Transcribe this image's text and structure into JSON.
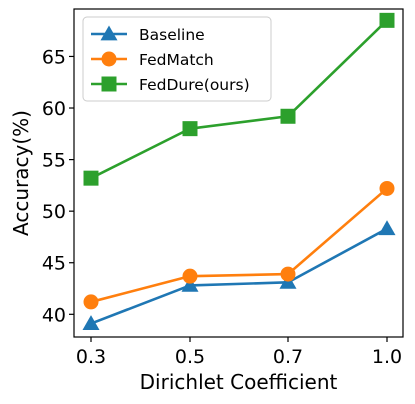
{
  "chart_data": {
    "type": "line",
    "categories": [
      "0.3",
      "0.5",
      "0.7",
      "1.0"
    ],
    "xlabel": "Dirichlet Coefficient",
    "ylabel": "Accuracy(%)",
    "ylim": [
      37.8,
      69.6
    ],
    "yticks": [
      40,
      45,
      50,
      55,
      60,
      65
    ],
    "grid": false,
    "legend_position": "top-left",
    "series": [
      {
        "name": "Baseline",
        "marker": "triangle",
        "color": "#1f77b4",
        "values": [
          39.1,
          42.8,
          43.1,
          48.3
        ]
      },
      {
        "name": "FedMatch",
        "marker": "circle",
        "color": "#ff7f0e",
        "values": [
          41.2,
          43.7,
          43.9,
          52.2
        ]
      },
      {
        "name": "FedDure(ours)",
        "marker": "square",
        "color": "#2ca02c",
        "values": [
          53.2,
          58.0,
          59.2,
          68.5
        ]
      }
    ]
  }
}
